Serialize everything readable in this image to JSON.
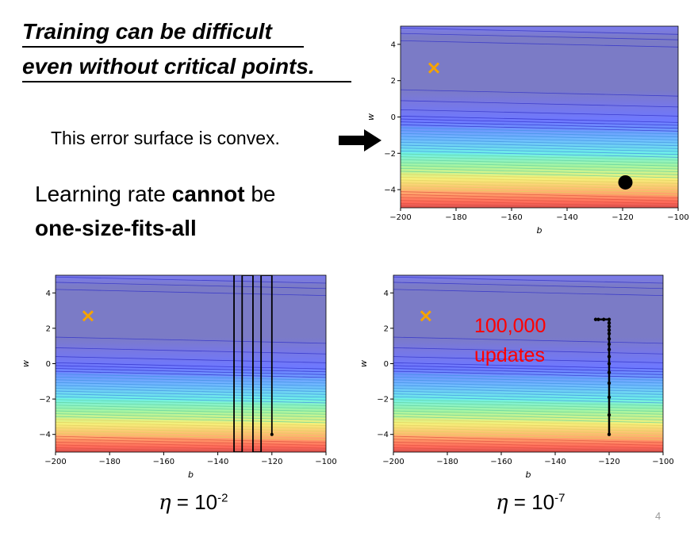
{
  "slide": {
    "title_line1": "Training can be difficult",
    "title_line2": "even without critical points.",
    "convex_text": "This error surface is convex.",
    "lr_line1_pre": "Learning rate ",
    "lr_line1_bold": "cannot",
    "lr_line1_post": " be",
    "lr_line2": "one-size-fits-all",
    "eta_left": {
      "symbol": "η",
      "eq": " = 10",
      "exp": "-2"
    },
    "eta_right": {
      "symbol": "η",
      "eq": " = 10",
      "exp": "-7"
    },
    "annotation_line1": "100,000",
    "annotation_line2": "updates",
    "page_number": "4",
    "colors": {
      "annotation": "#ff0000",
      "cross": "#f5a300",
      "path": "#000000"
    }
  },
  "chart_data": [
    {
      "type": "contour",
      "id": "top",
      "xlabel": "b",
      "ylabel": "w",
      "xlim": [
        -200,
        -100
      ],
      "ylim": [
        -5,
        5
      ],
      "xticks": [
        "−200",
        "−180",
        "−160",
        "−140",
        "−120",
        "−100"
      ],
      "yticks": [
        "−4",
        "−2",
        "0",
        "2",
        "4"
      ],
      "target": {
        "b": -188,
        "w": 2.7
      },
      "start_point": {
        "b": -119,
        "w": -3.6
      },
      "path": []
    },
    {
      "type": "contour",
      "id": "left",
      "xlabel": "b",
      "ylabel": "w",
      "xlim": [
        -200,
        -100
      ],
      "ylim": [
        -5,
        5
      ],
      "xticks": [
        "−200",
        "−180",
        "−160",
        "−140",
        "−120",
        "−100"
      ],
      "yticks": [
        "−4",
        "−2",
        "0",
        "2",
        "4"
      ],
      "target": {
        "b": -188,
        "w": 2.7
      },
      "start_point": {
        "b": -120,
        "w": -4
      },
      "path": [
        [
          -120,
          -4
        ],
        [
          -120,
          5
        ],
        [
          -124,
          5
        ],
        [
          -124,
          -5
        ],
        [
          -127,
          -5
        ],
        [
          -127,
          5
        ],
        [
          -131,
          5
        ],
        [
          -131,
          -5
        ],
        [
          -134,
          -5
        ],
        [
          -134,
          5
        ]
      ]
    },
    {
      "type": "contour",
      "id": "right",
      "xlabel": "b",
      "ylabel": "w",
      "xlim": [
        -200,
        -100
      ],
      "ylim": [
        -5,
        5
      ],
      "xticks": [
        "−200",
        "−180",
        "−160",
        "−140",
        "−120",
        "−100"
      ],
      "yticks": [
        "−4",
        "−2",
        "0",
        "2",
        "4"
      ],
      "target": {
        "b": -188,
        "w": 2.7
      },
      "start_point": {
        "b": -120,
        "w": -4
      },
      "path": [
        [
          -120,
          -4
        ],
        [
          -120,
          -2.9
        ],
        [
          -120,
          -1.9
        ],
        [
          -120,
          -1.1
        ],
        [
          -120,
          -0.5
        ],
        [
          -120,
          0
        ],
        [
          -120,
          0.4
        ],
        [
          -120,
          0.8
        ],
        [
          -120,
          1.1
        ],
        [
          -120,
          1.4
        ],
        [
          -120,
          1.7
        ],
        [
          -120,
          1.9
        ],
        [
          -120,
          2.1
        ],
        [
          -120,
          2.3
        ],
        [
          -120,
          2.5
        ],
        [
          -122,
          2.5
        ],
        [
          -124,
          2.5
        ],
        [
          -125,
          2.5
        ]
      ]
    }
  ]
}
